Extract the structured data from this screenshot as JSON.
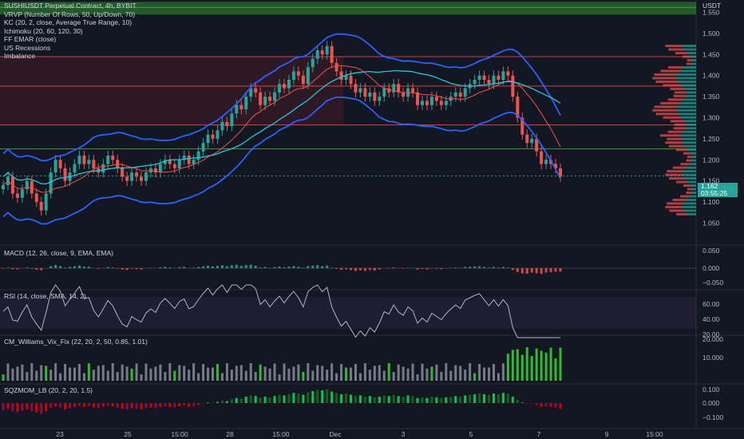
{
  "title": "SUSHIUSDT Perpetual Contract, 4h, BYBIT",
  "currency": "USDT",
  "legend": [
    "VRVP (Number Of Rows, 50, Up/Down, 70)",
    "KC (20, 2, close, Average True Range, 10)",
    "Ichimoku (20, 60, 120, 30)",
    "FF EMAR (close)",
    "US Recessions",
    "Imbalance"
  ],
  "last_price": "1.162",
  "countdown": "03:55:25",
  "colors": {
    "up": "#26a69a",
    "down": "#ef5350",
    "band": "#2962ff",
    "bg": "#131722",
    "grid": "#1e222d"
  },
  "panes": {
    "macd": "MACD (12, 26, close, 9, EMA, EMA)",
    "rsi": "RSI (14, close, SMA, 14, 2)",
    "vix": "CM_Williams_Vix_Fix (22, 20, 2, 50, 0.85, 1.01)",
    "sqz": "SQZMOM_LB (20, 2, 20, 1.5)"
  },
  "chart_data": {
    "type": "candlestick",
    "title": "SUSHIUSDT Perpetual Contract, 4h, BYBIT",
    "x_ticks": [
      "23",
      "25",
      "15:00",
      "28",
      "15:00",
      "Dec",
      "3",
      "5",
      "7",
      "9",
      "15:00"
    ],
    "price_ticks": [
      "1.550",
      "1.500",
      "1.450",
      "1.400",
      "1.350",
      "1.300",
      "1.250",
      "1.200",
      "1.150",
      "1.100",
      "1.050"
    ],
    "ylim": [
      1.03,
      1.57
    ],
    "macd_ticks": [
      "0.050",
      "0.000",
      "−0.050"
    ],
    "rsi_ticks": [
      "60.00",
      "40.00",
      "20.00"
    ],
    "vix_ticks": [
      "20.000",
      "10.000"
    ],
    "sqz_ticks": [
      "0.100",
      "0.000",
      "−0.100"
    ],
    "horizontal_levels": [
      1.562,
      1.445,
      1.375,
      1.283,
      1.226
    ],
    "candles_close": [
      1.14,
      1.16,
      1.12,
      1.11,
      1.13,
      1.15,
      1.12,
      1.1,
      1.08,
      1.12,
      1.17,
      1.2,
      1.18,
      1.15,
      1.17,
      1.19,
      1.21,
      1.19,
      1.2,
      1.18,
      1.17,
      1.19,
      1.21,
      1.2,
      1.18,
      1.16,
      1.15,
      1.17,
      1.16,
      1.15,
      1.17,
      1.18,
      1.17,
      1.19,
      1.2,
      1.19,
      1.18,
      1.2,
      1.21,
      1.19,
      1.2,
      1.22,
      1.24,
      1.26,
      1.25,
      1.27,
      1.29,
      1.28,
      1.31,
      1.33,
      1.32,
      1.35,
      1.37,
      1.36,
      1.33,
      1.35,
      1.34,
      1.36,
      1.38,
      1.37,
      1.39,
      1.41,
      1.4,
      1.38,
      1.42,
      1.44,
      1.46,
      1.45,
      1.47,
      1.43,
      1.41,
      1.39,
      1.4,
      1.38,
      1.36,
      1.37,
      1.35,
      1.36,
      1.34,
      1.35,
      1.37,
      1.36,
      1.38,
      1.36,
      1.35,
      1.37,
      1.36,
      1.33,
      1.34,
      1.33,
      1.35,
      1.34,
      1.33,
      1.34,
      1.35,
      1.36,
      1.35,
      1.37,
      1.38,
      1.39,
      1.4,
      1.39,
      1.38,
      1.4,
      1.39,
      1.41,
      1.4,
      1.35,
      1.3,
      1.26,
      1.24,
      1.25,
      1.22,
      1.19,
      1.2,
      1.19,
      1.18,
      1.16
    ]
  }
}
